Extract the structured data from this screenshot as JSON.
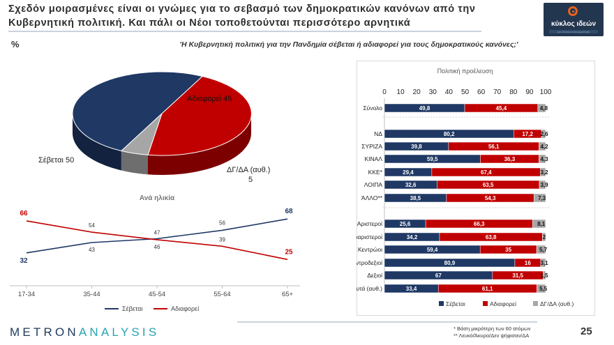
{
  "header": {
    "title_line1": "Σχεδόν μοιρασμένες είναι οι γνώμες για το σεβασμό των δημοκρατικών κανόνων από την",
    "title_line2": "Κυβερνητική πολιτική. Και πάλι οι Νέοι τοποθετούνται περισσότερο αρνητικά",
    "logo_name": "κύκλος ιδεών",
    "logo_tagline": "για εθνική ανασυγκρότηση"
  },
  "percent_symbol": "%",
  "question": "'Η Κυβερνητική πολιτική για την Πανδημία σέβεται ή αδιαφορεί για τους δημοκρατικούς κανόνες;'",
  "colors": {
    "respect": "#1f3864",
    "indifferent": "#c00000",
    "dk": "#a6a6a6"
  },
  "chart_data": [
    {
      "type": "pie",
      "labels": [
        "Σέβεται 50",
        "Αδιαφορεί 45",
        "ΔΓ/ΔΑ (αυθ.)",
        "5"
      ],
      "slices": [
        {
          "name": "Σέβεται",
          "value": 50
        },
        {
          "name": "Αδιαφορεί",
          "value": 45
        },
        {
          "name": "ΔΓ/ΔΑ (αυθ.)",
          "value": 5
        }
      ]
    },
    {
      "type": "line",
      "title": "Ανά ηλικία",
      "categories": [
        "17-34",
        "35-44",
        "45-54",
        "55-64",
        "65+"
      ],
      "ylim": [
        0,
        80
      ],
      "series": [
        {
          "name": "Σέβεται",
          "values": [
            32,
            43,
            47,
            56,
            68
          ]
        },
        {
          "name": "Αδιαφορεί",
          "values": [
            66,
            54,
            46,
            39,
            25
          ]
        }
      ]
    },
    {
      "type": "bar",
      "orientation": "horizontal-stacked",
      "title": "Πολιτική προέλευση",
      "xlim": [
        0,
        100
      ],
      "xticks": [
        "0",
        "10",
        "20",
        "30",
        "40",
        "50",
        "60",
        "70",
        "80",
        "90",
        "100"
      ],
      "series_names": [
        "Σέβεται",
        "Αδιαφορεί",
        "ΔΓ/ΔΑ (αυθ.)"
      ],
      "groups": [
        [
          {
            "label": "Σύνολο",
            "values": [
              49.8,
              45.4,
              4.8
            ],
            "texts": [
              "49,8",
              "45,4",
              "4,8"
            ]
          }
        ],
        [
          {
            "label": "ΝΔ",
            "values": [
              80.2,
              17.2,
              2.6
            ],
            "texts": [
              "80,2",
              "17,2",
              "2,6"
            ]
          },
          {
            "label": "ΣΥΡΙΖΑ",
            "values": [
              39.8,
              56.1,
              4.2
            ],
            "texts": [
              "39,8",
              "56,1",
              "4,2"
            ]
          },
          {
            "label": "ΚΙΝΑΛ",
            "values": [
              59.5,
              36.3,
              4.3
            ],
            "texts": [
              "59,5",
              "36,3",
              "4,3"
            ]
          },
          {
            "label": "ΚΚΕ*",
            "values": [
              29.4,
              67.4,
              3.2
            ],
            "texts": [
              "29,4",
              "67,4",
              "3,2"
            ]
          },
          {
            "label": "ΛΟΙΠΑ",
            "values": [
              32.6,
              63.5,
              3.9
            ],
            "texts": [
              "32,6",
              "63,5",
              "3,9"
            ]
          },
          {
            "label": "ΆΛΛΟ**",
            "values": [
              38.5,
              54.3,
              7.3
            ],
            "texts": [
              "38,5",
              "54,3",
              "7,3"
            ]
          }
        ],
        [
          {
            "label": "Αριστεροί",
            "values": [
              25.6,
              66.3,
              8.1
            ],
            "texts": [
              "25,6",
              "66,3",
              "8,1"
            ]
          },
          {
            "label": "Κεντροαριστεροί",
            "values": [
              34.2,
              63.8,
              2.0
            ],
            "texts": [
              "34,2",
              "63,8",
              "2"
            ]
          },
          {
            "label": "Κεντρώοι",
            "values": [
              59.4,
              35.0,
              5.7
            ],
            "texts": [
              "59,4",
              "35",
              "5,7"
            ]
          },
          {
            "label": "Κεντροδεξιοί",
            "values": [
              80.9,
              16.0,
              3.1
            ],
            "texts": [
              "80,9",
              "16",
              "3,1"
            ]
          },
          {
            "label": "Δεξιοί",
            "values": [
              67.0,
              31.5,
              1.5
            ],
            "texts": [
              "67",
              "31,5",
              "1,5"
            ]
          },
          {
            "label": "Τίποτα από αυτά (αυθ.)",
            "values": [
              33.4,
              61.1,
              5.5
            ],
            "texts": [
              "33,4",
              "61,1",
              "5,5"
            ]
          }
        ]
      ]
    }
  ],
  "footer": {
    "brand_dark": "METRON",
    "brand_light": "ANALYSIS",
    "note1": "*  Βάση μικρότερη των 60 ατόμων",
    "note2": "** Λευκό/Άκυρο/Δεν ψήφισαν/ΔΑ",
    "page_number": "25"
  }
}
